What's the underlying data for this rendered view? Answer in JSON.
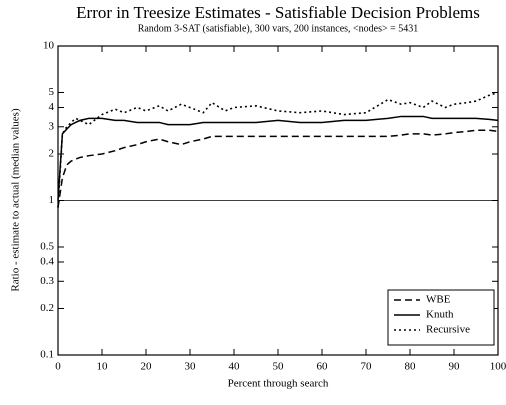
{
  "chart_data": {
    "type": "line",
    "title": "Error in Treesize Estimates - Satisfiable Decision Problems",
    "subtitle": "Random 3-SAT (satisfiable), 300 vars, 200 instances, <nodes> = 5431",
    "x_label": "Percent through search",
    "y_label": "Ratio - estimate to actual (median values)",
    "x": [
      0,
      1,
      2,
      3,
      4,
      5,
      7,
      10,
      13,
      15,
      18,
      20,
      23,
      25,
      28,
      30,
      33,
      35,
      38,
      40,
      45,
      50,
      55,
      60,
      65,
      70,
      75,
      78,
      80,
      83,
      85,
      88,
      90,
      93,
      95,
      98,
      100
    ],
    "series": [
      {
        "name": "WBE",
        "color": "#000000",
        "dash": "dashed",
        "values": [
          0.9,
          1.4,
          1.7,
          1.8,
          1.85,
          1.9,
          1.95,
          2.0,
          2.1,
          2.2,
          2.3,
          2.4,
          2.5,
          2.4,
          2.3,
          2.4,
          2.5,
          2.6,
          2.6,
          2.6,
          2.6,
          2.6,
          2.6,
          2.6,
          2.6,
          2.6,
          2.6,
          2.65,
          2.7,
          2.7,
          2.65,
          2.7,
          2.75,
          2.8,
          2.85,
          2.85,
          2.8
        ]
      },
      {
        "name": "Knuth",
        "color": "#000000",
        "dash": "solid",
        "values": [
          1.0,
          2.7,
          2.9,
          3.1,
          3.2,
          3.3,
          3.4,
          3.4,
          3.3,
          3.3,
          3.2,
          3.2,
          3.2,
          3.1,
          3.1,
          3.1,
          3.2,
          3.2,
          3.2,
          3.2,
          3.2,
          3.3,
          3.2,
          3.2,
          3.3,
          3.3,
          3.4,
          3.5,
          3.5,
          3.5,
          3.4,
          3.4,
          3.4,
          3.4,
          3.4,
          3.35,
          3.3
        ]
      },
      {
        "name": "Recursive",
        "color": "#000000",
        "dash": "dotted",
        "values": [
          0.9,
          2.7,
          3.0,
          3.2,
          3.4,
          3.3,
          3.1,
          3.6,
          3.9,
          3.7,
          4.0,
          3.8,
          4.1,
          3.8,
          4.2,
          4.0,
          3.7,
          4.3,
          3.8,
          4.0,
          4.1,
          3.8,
          3.7,
          3.8,
          3.6,
          3.7,
          4.5,
          4.2,
          4.3,
          4.0,
          4.4,
          4.0,
          4.2,
          4.3,
          4.4,
          4.8,
          5.0
        ]
      }
    ],
    "xlim": [
      0,
      100
    ],
    "xticks": [
      0,
      10,
      20,
      30,
      40,
      50,
      60,
      70,
      80,
      90,
      100
    ],
    "ylim": [
      0.1,
      10
    ],
    "yticks": [
      0.1,
      0.2,
      0.3,
      0.4,
      0.5,
      1,
      2,
      3,
      4,
      5,
      10
    ],
    "log_y": true,
    "reference_lines": [
      1
    ],
    "legend": "lower right"
  }
}
